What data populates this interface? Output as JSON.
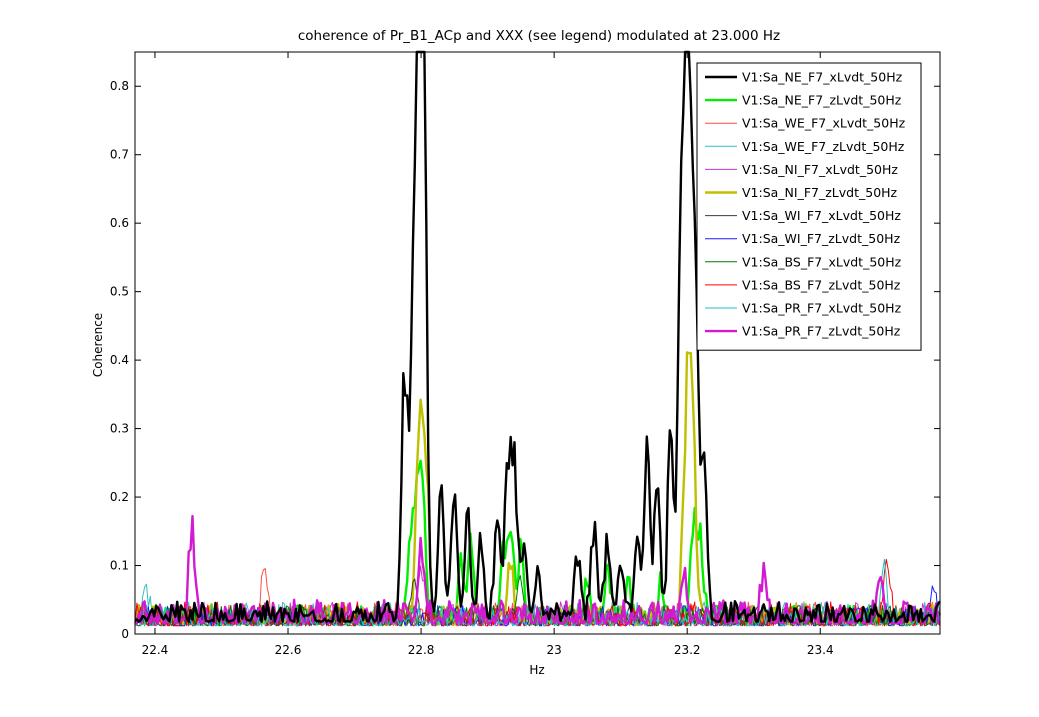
{
  "chart_data": {
    "type": "line",
    "title": "coherence of Pr_B1_ACp and XXX (see legend) modulated at 23.000 Hz",
    "xlabel": "Hz",
    "ylabel": "Coherence",
    "xlim": [
      22.37,
      23.58
    ],
    "ylim": [
      0,
      0.85
    ],
    "x_ticks": [
      22.4,
      22.6,
      22.8,
      23,
      23.2,
      23.4
    ],
    "x_tick_labels": [
      "22.4",
      "22.6",
      "22.8",
      "23",
      "23.2",
      "23.4"
    ],
    "y_ticks": [
      0,
      0.1,
      0.2,
      0.3,
      0.4,
      0.5,
      0.6,
      0.7,
      0.8
    ],
    "y_tick_labels": [
      "0",
      "0.1",
      "0.2",
      "0.3",
      "0.4",
      "0.5",
      "0.6",
      "0.7",
      "0.8"
    ],
    "grid": false,
    "legend_position": "top-right",
    "series": [
      {
        "name": "V1:Sa_NE_F7_xLvdt_50Hz",
        "color": "#000000",
        "width": 2.4,
        "seed": 11,
        "base": 0.018,
        "noise": 0.03,
        "peaks": [
          [
            22.775,
            0.36
          ],
          [
            22.787,
            0.45
          ],
          [
            22.795,
            0.58
          ],
          [
            22.8,
            0.67
          ],
          [
            22.805,
            0.62
          ],
          [
            22.83,
            0.21
          ],
          [
            22.85,
            0.19
          ],
          [
            22.87,
            0.17
          ],
          [
            22.89,
            0.12
          ],
          [
            22.915,
            0.16
          ],
          [
            22.93,
            0.24
          ],
          [
            22.94,
            0.25
          ],
          [
            22.955,
            0.12
          ],
          [
            22.975,
            0.07
          ],
          [
            23.035,
            0.1
          ],
          [
            23.06,
            0.14
          ],
          [
            23.08,
            0.12
          ],
          [
            23.1,
            0.09
          ],
          [
            23.125,
            0.13
          ],
          [
            23.14,
            0.23
          ],
          [
            23.155,
            0.19
          ],
          [
            23.175,
            0.27
          ],
          [
            23.19,
            0.52
          ],
          [
            23.198,
            0.66
          ],
          [
            23.205,
            0.55
          ],
          [
            23.213,
            0.4
          ],
          [
            23.225,
            0.24
          ]
        ]
      },
      {
        "name": "V1:Sa_NE_F7_zLvdt_50Hz",
        "color": "#00ee00",
        "width": 2.4,
        "seed": 23,
        "base": 0.015,
        "noise": 0.028,
        "peaks": [
          [
            22.785,
            0.14
          ],
          [
            22.795,
            0.2
          ],
          [
            22.803,
            0.16
          ],
          [
            22.86,
            0.1
          ],
          [
            22.875,
            0.12
          ],
          [
            22.925,
            0.1
          ],
          [
            22.935,
            0.13
          ],
          [
            22.95,
            0.1
          ],
          [
            23.05,
            0.06
          ],
          [
            23.08,
            0.08
          ],
          [
            23.11,
            0.06
          ],
          [
            23.16,
            0.05
          ],
          [
            23.21,
            0.15
          ],
          [
            23.22,
            0.12
          ]
        ]
      },
      {
        "name": "V1:Sa_WE_F7_xLvdt_50Hz",
        "color": "#ff4c4c",
        "width": 1,
        "seed": 37,
        "base": 0.012,
        "noise": 0.035,
        "peaks": [
          [
            22.565,
            0.09
          ]
        ]
      },
      {
        "name": "V1:Sa_WE_F7_zLvdt_50Hz",
        "color": "#33bfbf",
        "width": 1,
        "seed": 41,
        "base": 0.012,
        "noise": 0.035,
        "peaks": [
          [
            22.385,
            0.05
          ]
        ]
      },
      {
        "name": "V1:Sa_NI_F7_xLvdt_50Hz",
        "color": "#cc33cc",
        "width": 1,
        "seed": 53,
        "base": 0.012,
        "noise": 0.035,
        "peaks": [
          [
            22.8,
            0.09
          ]
        ]
      },
      {
        "name": "V1:Sa_NI_F7_zLvdt_50Hz",
        "color": "#bfbf00",
        "width": 2.4,
        "seed": 67,
        "base": 0.014,
        "noise": 0.03,
        "peaks": [
          [
            22.795,
            0.16
          ],
          [
            22.802,
            0.27
          ],
          [
            22.809,
            0.15
          ],
          [
            22.935,
            0.08
          ],
          [
            23.196,
            0.15
          ],
          [
            23.203,
            0.34
          ],
          [
            23.21,
            0.18
          ]
        ]
      },
      {
        "name": "V1:Sa_WI_F7_xLvdt_50Hz",
        "color": "#3a3a3a",
        "width": 1,
        "seed": 71,
        "base": 0.012,
        "noise": 0.03,
        "peaks": [
          [
            22.79,
            0.07
          ]
        ]
      },
      {
        "name": "V1:Sa_WI_F7_zLvdt_50Hz",
        "color": "#1a1aff",
        "width": 1,
        "seed": 83,
        "base": 0.012,
        "noise": 0.03,
        "peaks": [
          [
            23.57,
            0.05
          ]
        ]
      },
      {
        "name": "V1:Sa_BS_F7_xLvdt_50Hz",
        "color": "#007a00",
        "width": 1,
        "seed": 97,
        "base": 0.012,
        "noise": 0.03,
        "peaks": [
          [
            22.95,
            0.06
          ]
        ]
      },
      {
        "name": "V1:Sa_BS_F7_zLvdt_50Hz",
        "color": "#ff0000",
        "width": 1,
        "seed": 101,
        "base": 0.012,
        "noise": 0.035,
        "peaks": [
          [
            23.5,
            0.1
          ]
        ]
      },
      {
        "name": "V1:Sa_PR_F7_xLvdt_50Hz",
        "color": "#1ac6c6",
        "width": 1,
        "seed": 113,
        "base": 0.012,
        "noise": 0.03,
        "peaks": [
          [
            23.495,
            0.08
          ]
        ]
      },
      {
        "name": "V1:Sa_PR_F7_zLvdt_50Hz",
        "color": "#d11ad1",
        "width": 2.4,
        "seed": 127,
        "base": 0.015,
        "noise": 0.035,
        "peaks": [
          [
            22.455,
            0.13
          ],
          [
            22.8,
            0.12
          ],
          [
            23.195,
            0.08
          ],
          [
            23.315,
            0.07
          ],
          [
            23.49,
            0.08
          ]
        ]
      }
    ]
  }
}
